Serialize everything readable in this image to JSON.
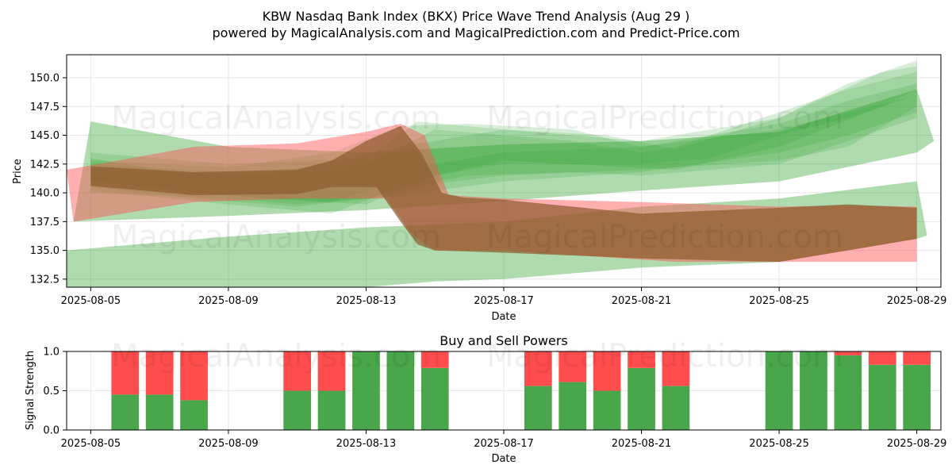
{
  "header": {
    "title": "KBW Nasdaq Bank Index (BKX) Price Wave Trend Analysis (Aug 29 )",
    "subtitle": "powered by MagicalAnalysis.com and MagicalPrediction.com and Predict-Price.com"
  },
  "watermarks": [
    "MagicalAnalysis.com",
    "MagicalPrediction.com"
  ],
  "colors": {
    "green": "#2ca02c",
    "red": "#ff4d4d",
    "brown": "#8b5a2b",
    "buy": "#4aa64a",
    "sell": "#ff4d4d"
  },
  "chart_data": [
    {
      "type": "area",
      "xlabel": "Date",
      "ylabel": "Price",
      "x_ticks": [
        "2025-08-05",
        "2025-08-09",
        "2025-08-13",
        "2025-08-17",
        "2025-08-21",
        "2025-08-25",
        "2025-08-29"
      ],
      "y_ticks": [
        "132.5",
        "135.0",
        "137.5",
        "140.0",
        "142.5",
        "145.0",
        "147.5",
        "150.0"
      ],
      "xlim": [
        "2025-08-04.3",
        "2025-08-29.7"
      ],
      "ylim": [
        131.8,
        152.0
      ],
      "grid": true,
      "series": [
        {
          "color": "green",
          "alpha": 0.38,
          "upper": [
            [
              "2025-08-05",
              146.2
            ],
            [
              "2025-08-09",
              144.0
            ],
            [
              "2025-08-13",
              143.5
            ],
            [
              "2025-08-17",
              144.2
            ],
            [
              "2025-08-21",
              144.5
            ],
            [
              "2025-08-25",
              145.3
            ],
            [
              "2025-08-29",
              149.0
            ],
            [
              "2025-08-29.5",
              144.5
            ]
          ],
          "lower": [
            [
              "2025-08-04.5",
              137.5
            ],
            [
              "2025-08-09",
              138.0
            ],
            [
              "2025-08-13",
              138.5
            ],
            [
              "2025-08-17",
              139.3
            ],
            [
              "2025-08-21",
              140.2
            ],
            [
              "2025-08-25",
              141.0
            ],
            [
              "2025-08-29",
              143.5
            ]
          ]
        },
        {
          "color": "green",
          "alpha": 0.38,
          "upper": [
            [
              "2025-08-04.3",
              135.0
            ],
            [
              "2025-08-09",
              136.2
            ],
            [
              "2025-08-13",
              137.0
            ],
            [
              "2025-08-17",
              137.5
            ],
            [
              "2025-08-21",
              138.8
            ],
            [
              "2025-08-25",
              139.5
            ],
            [
              "2025-08-29",
              141.0
            ],
            [
              "2025-08-29.3",
              136.3
            ]
          ],
          "lower": [
            [
              "2025-08-04.3",
              131.8
            ],
            [
              "2025-08-13",
              131.8
            ],
            [
              "2025-08-15",
              132.3
            ],
            [
              "2025-08-17",
              132.5
            ],
            [
              "2025-08-21",
              133.5
            ],
            [
              "2025-08-25",
              134.0
            ],
            [
              "2025-08-29",
              136.0
            ]
          ]
        },
        {
          "color": "green",
          "alpha": 0.18,
          "upper": [
            [
              "2025-08-05",
              143.5
            ],
            [
              "2025-08-09",
              142.5
            ],
            [
              "2025-08-13",
              143.0
            ],
            [
              "2025-08-14.5",
              146.2
            ],
            [
              "2025-08-17",
              145.5
            ],
            [
              "2025-08-19",
              145.0
            ],
            [
              "2025-08-21",
              144.5
            ],
            [
              "2025-08-25",
              146.5
            ],
            [
              "2025-08-27",
              149.5
            ],
            [
              "2025-08-29",
              151.5
            ]
          ],
          "lower": [
            [
              "2025-08-05",
              140.0
            ],
            [
              "2025-08-09",
              139.5
            ],
            [
              "2025-08-11",
              139.0
            ],
            [
              "2025-08-13",
              139.5
            ],
            [
              "2025-08-15",
              140.8
            ],
            [
              "2025-08-17",
              141.5
            ],
            [
              "2025-08-21",
              142.0
            ],
            [
              "2025-08-25",
              142.8
            ],
            [
              "2025-08-27",
              144.0
            ],
            [
              "2025-08-29",
              147.5
            ]
          ]
        },
        {
          "color": "green",
          "alpha": 0.18,
          "upper": [
            [
              "2025-08-05",
              142.5
            ],
            [
              "2025-08-09",
              141.8
            ],
            [
              "2025-08-13",
              142.5
            ],
            [
              "2025-08-15",
              145.5
            ],
            [
              "2025-08-17",
              145.0
            ],
            [
              "2025-08-19",
              144.5
            ],
            [
              "2025-08-21",
              143.5
            ],
            [
              "2025-08-22",
              144.0
            ],
            [
              "2025-08-25",
              147.0
            ],
            [
              "2025-08-27",
              149.0
            ],
            [
              "2025-08-29",
              150.5
            ]
          ],
          "lower": [
            [
              "2025-08-05",
              141.0
            ],
            [
              "2025-08-09",
              139.8
            ],
            [
              "2025-08-12",
              139.2
            ],
            [
              "2025-08-14",
              141.0
            ],
            [
              "2025-08-17",
              142.5
            ],
            [
              "2025-08-21",
              142.5
            ],
            [
              "2025-08-23",
              143.0
            ],
            [
              "2025-08-25",
              145.0
            ],
            [
              "2025-08-27",
              146.5
            ],
            [
              "2025-08-29",
              148.5
            ]
          ]
        },
        {
          "color": "green",
          "alpha": 0.18,
          "upper": [
            [
              "2025-08-05",
              143.0
            ],
            [
              "2025-08-09",
              141.0
            ],
            [
              "2025-08-12",
              140.5
            ],
            [
              "2025-08-14",
              142.0
            ],
            [
              "2025-08-17",
              143.5
            ],
            [
              "2025-08-21",
              144.0
            ],
            [
              "2025-08-25",
              146.0
            ],
            [
              "2025-08-27",
              148.0
            ],
            [
              "2025-08-29",
              149.5
            ]
          ],
          "lower": [
            [
              "2025-08-05",
              140.5
            ],
            [
              "2025-08-08",
              139.5
            ],
            [
              "2025-08-11",
              138.8
            ],
            [
              "2025-08-14",
              139.8
            ],
            [
              "2025-08-17",
              141.0
            ],
            [
              "2025-08-21",
              141.8
            ],
            [
              "2025-08-25",
              143.5
            ],
            [
              "2025-08-27",
              145.0
            ],
            [
              "2025-08-29",
              147.0
            ]
          ]
        },
        {
          "color": "green",
          "alpha": 0.18,
          "upper": [
            [
              "2025-08-05",
              142.0
            ],
            [
              "2025-08-10",
              141.5
            ],
            [
              "2025-08-14",
              144.0
            ],
            [
              "2025-08-17",
              145.5
            ],
            [
              "2025-08-20",
              145.0
            ],
            [
              "2025-08-22",
              143.8
            ],
            [
              "2025-08-25",
              146.5
            ],
            [
              "2025-08-28",
              150.5
            ],
            [
              "2025-08-29",
              151.0
            ]
          ],
          "lower": [
            [
              "2025-08-05",
              141.0
            ],
            [
              "2025-08-10",
              139.5
            ],
            [
              "2025-08-13",
              139.0
            ],
            [
              "2025-08-15",
              141.5
            ],
            [
              "2025-08-17",
              142.8
            ],
            [
              "2025-08-22",
              142.0
            ],
            [
              "2025-08-25",
              144.0
            ],
            [
              "2025-08-28",
              147.5
            ],
            [
              "2025-08-29",
              149.0
            ]
          ]
        },
        {
          "color": "green",
          "alpha": 0.18,
          "upper": [
            [
              "2025-08-05",
              142.8
            ],
            [
              "2025-08-09",
              142.2
            ],
            [
              "2025-08-12",
              143.5
            ],
            [
              "2025-08-14",
              145.8
            ],
            [
              "2025-08-16",
              146.0
            ],
            [
              "2025-08-19",
              145.5
            ],
            [
              "2025-08-21",
              144.0
            ],
            [
              "2025-08-25",
              145.5
            ],
            [
              "2025-08-29",
              148.5
            ]
          ],
          "lower": [
            [
              "2025-08-05",
              140.2
            ],
            [
              "2025-08-09",
              139.0
            ],
            [
              "2025-08-12",
              138.2
            ],
            [
              "2025-08-14",
              140.5
            ],
            [
              "2025-08-16",
              141.5
            ],
            [
              "2025-08-19",
              141.8
            ],
            [
              "2025-08-21",
              141.5
            ],
            [
              "2025-08-25",
              142.5
            ],
            [
              "2025-08-29",
              146.5
            ]
          ]
        },
        {
          "color": "red",
          "alpha": 0.45,
          "upper": [
            [
              "2025-08-04.3",
              142.0
            ],
            [
              "2025-08-08",
              144.0
            ],
            [
              "2025-08-11",
              144.3
            ],
            [
              "2025-08-13",
              145.3
            ],
            [
              "2025-08-14",
              146.0
            ],
            [
              "2025-08-14.7",
              145.0
            ],
            [
              "2025-08-15.4",
              139.8
            ],
            [
              "2025-08-17",
              139.5
            ],
            [
              "2025-08-21",
              139.2
            ],
            [
              "2025-08-25",
              138.8
            ],
            [
              "2025-08-27",
              138.9
            ],
            [
              "2025-08-29",
              138.8
            ]
          ],
          "lower": [
            [
              "2025-08-29",
              134.0
            ],
            [
              "2025-08-25",
              134.0
            ],
            [
              "2025-08-22",
              134.0
            ],
            [
              "2025-08-17",
              135.0
            ],
            [
              "2025-08-15",
              135.0
            ],
            [
              "2025-08-14.3",
              136.5
            ],
            [
              "2025-08-13.6",
              139.5
            ],
            [
              "2025-08-11",
              139.5
            ],
            [
              "2025-08-08",
              139.2
            ],
            [
              "2025-08-04.5",
              137.5
            ]
          ]
        },
        {
          "color": "brown",
          "alpha": 0.7,
          "upper": [
            [
              "2025-08-05",
              142.3
            ],
            [
              "2025-08-08",
              141.8
            ],
            [
              "2025-08-11",
              142.0
            ],
            [
              "2025-08-12",
              142.8
            ],
            [
              "2025-08-13",
              144.5
            ],
            [
              "2025-08-14",
              145.8
            ],
            [
              "2025-08-14.6",
              143.5
            ],
            [
              "2025-08-15.2",
              140.0
            ],
            [
              "2025-08-15.8",
              139.6
            ],
            [
              "2025-08-17",
              139.4
            ],
            [
              "2025-08-21",
              138.2
            ],
            [
              "2025-08-25",
              138.7
            ],
            [
              "2025-08-27",
              139.0
            ],
            [
              "2025-08-29",
              138.7
            ]
          ],
          "lower": [
            [
              "2025-08-29",
              136.0
            ],
            [
              "2025-08-27",
              135.0
            ],
            [
              "2025-08-25",
              134.0
            ],
            [
              "2025-08-21",
              134.3
            ],
            [
              "2025-08-17",
              134.8
            ],
            [
              "2025-08-15",
              135.0
            ],
            [
              "2025-08-14.5",
              135.5
            ],
            [
              "2025-08-14.0",
              137.5
            ],
            [
              "2025-08-13.3",
              140.5
            ],
            [
              "2025-08-12",
              140.5
            ],
            [
              "2025-08-11",
              139.9
            ],
            [
              "2025-08-08",
              139.8
            ],
            [
              "2025-08-05",
              140.6
            ]
          ]
        }
      ]
    },
    {
      "type": "bar",
      "title": "Buy and Sell Powers",
      "xlabel": "Date",
      "ylabel": "Signal Strength",
      "x_ticks": [
        "2025-08-05",
        "2025-08-09",
        "2025-08-13",
        "2025-08-17",
        "2025-08-21",
        "2025-08-25",
        "2025-08-29"
      ],
      "y_ticks": [
        "0.0",
        "0.5",
        "1.0"
      ],
      "ylim": [
        0,
        1
      ],
      "xlim": [
        "2025-08-04.3",
        "2025-08-29.7"
      ],
      "grid": true,
      "series": [
        {
          "name": "buy",
          "x": [
            "2025-08-06",
            "2025-08-07",
            "2025-08-08",
            "2025-08-11",
            "2025-08-12",
            "2025-08-13",
            "2025-08-14",
            "2025-08-15",
            "2025-08-18",
            "2025-08-19",
            "2025-08-20",
            "2025-08-21",
            "2025-08-22",
            "2025-08-25",
            "2025-08-26",
            "2025-08-27",
            "2025-08-28",
            "2025-08-29"
          ],
          "values": [
            0.45,
            0.45,
            0.38,
            0.5,
            0.5,
            1.0,
            1.0,
            0.79,
            0.56,
            0.61,
            0.5,
            0.79,
            0.56,
            1.0,
            1.0,
            0.95,
            0.83,
            0.83
          ]
        },
        {
          "name": "sell",
          "x": [
            "2025-08-06",
            "2025-08-07",
            "2025-08-08",
            "2025-08-11",
            "2025-08-12",
            "2025-08-13",
            "2025-08-14",
            "2025-08-15",
            "2025-08-18",
            "2025-08-19",
            "2025-08-20",
            "2025-08-21",
            "2025-08-22",
            "2025-08-25",
            "2025-08-26",
            "2025-08-27",
            "2025-08-28",
            "2025-08-29"
          ],
          "values": [
            0.55,
            0.55,
            0.62,
            0.5,
            0.5,
            0.0,
            0.0,
            0.21,
            0.44,
            0.39,
            0.5,
            0.21,
            0.44,
            0.0,
            0.0,
            0.05,
            0.17,
            0.17
          ]
        }
      ]
    }
  ]
}
